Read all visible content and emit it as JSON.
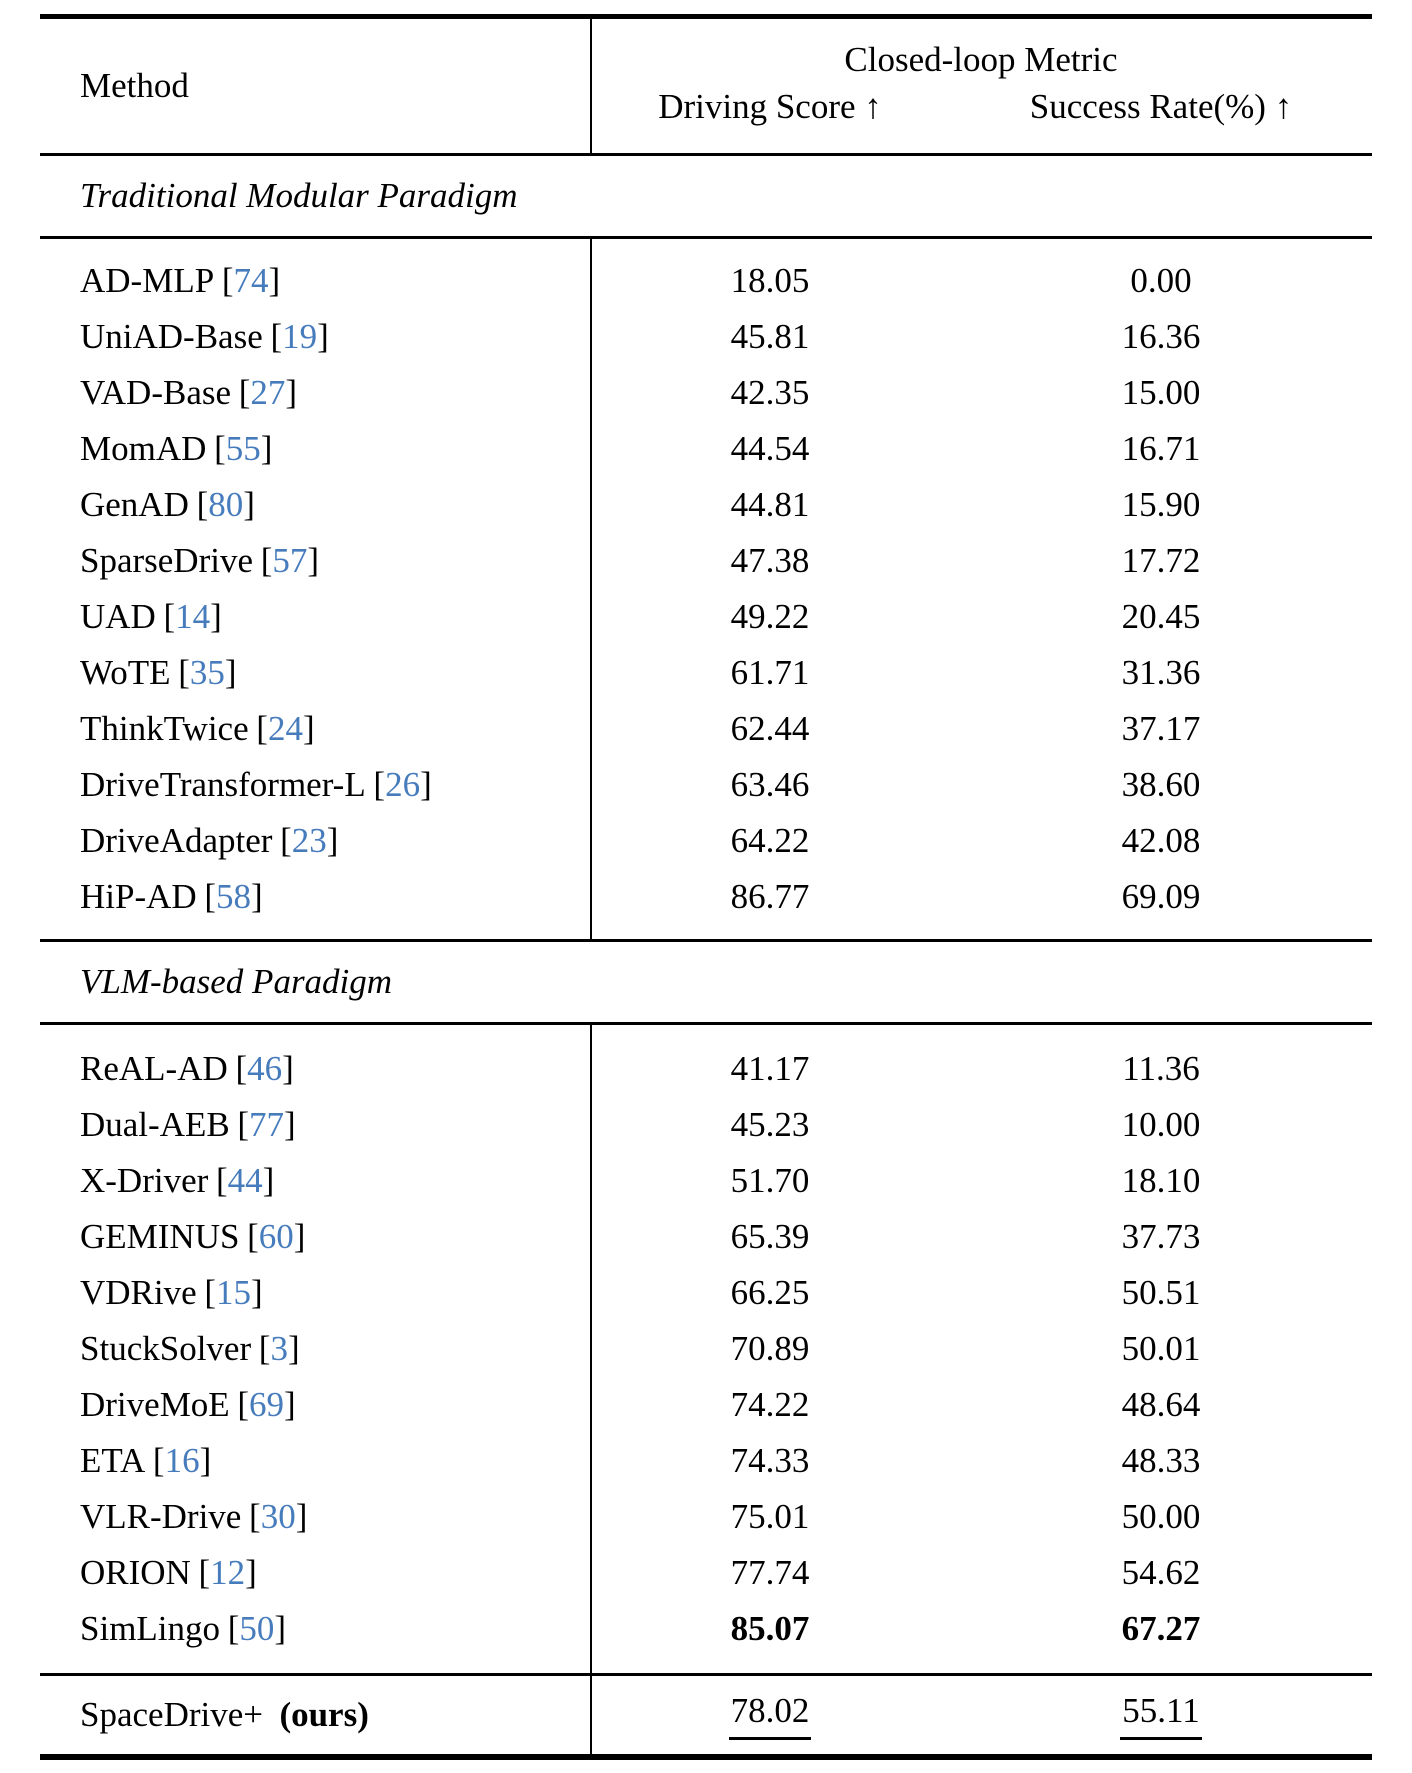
{
  "colors": {
    "citation": "#477cbc",
    "text": "#000000",
    "background": "#ffffff"
  },
  "header": {
    "method_label": "Method",
    "group_label": "Closed-loop Metric",
    "driving_score_label": "Driving Score ↑",
    "success_rate_label": "Success Rate(%) ↑"
  },
  "chart_data": {
    "type": "table",
    "title": "Closed-loop Metric comparison",
    "columns": [
      "Method",
      "Driving Score",
      "Success Rate(%)"
    ]
  },
  "sections": [
    {
      "title": "Traditional Modular Paradigm",
      "rows": [
        {
          "method": "AD-MLP",
          "ref": "74",
          "driving_score": "18.05",
          "success_rate": "0.00"
        },
        {
          "method": "UniAD-Base",
          "ref": "19",
          "driving_score": "45.81",
          "success_rate": "16.36"
        },
        {
          "method": "VAD-Base",
          "ref": "27",
          "driving_score": "42.35",
          "success_rate": "15.00"
        },
        {
          "method": "MomAD",
          "ref": "55",
          "driving_score": "44.54",
          "success_rate": "16.71"
        },
        {
          "method": "GenAD",
          "ref": "80",
          "driving_score": "44.81",
          "success_rate": "15.90"
        },
        {
          "method": "SparseDrive",
          "ref": "57",
          "driving_score": "47.38",
          "success_rate": "17.72"
        },
        {
          "method": "UAD",
          "ref": "14",
          "driving_score": "49.22",
          "success_rate": "20.45"
        },
        {
          "method": "WoTE",
          "ref": "35",
          "driving_score": "61.71",
          "success_rate": "31.36"
        },
        {
          "method": "ThinkTwice",
          "ref": "24",
          "driving_score": "62.44",
          "success_rate": "37.17"
        },
        {
          "method": "DriveTransformer-L",
          "ref": "26",
          "driving_score": "63.46",
          "success_rate": "38.60"
        },
        {
          "method": "DriveAdapter",
          "ref": "23",
          "driving_score": "64.22",
          "success_rate": "42.08"
        },
        {
          "method": "HiP-AD",
          "ref": "58",
          "driving_score": "86.77",
          "success_rate": "69.09"
        }
      ]
    },
    {
      "title": "VLM-based Paradigm",
      "rows": [
        {
          "method": "ReAL-AD",
          "ref": "46",
          "driving_score": "41.17",
          "success_rate": "11.36"
        },
        {
          "method": "Dual-AEB",
          "ref": "77",
          "driving_score": "45.23",
          "success_rate": "10.00"
        },
        {
          "method": "X-Driver",
          "ref": "44",
          "driving_score": "51.70",
          "success_rate": "18.10"
        },
        {
          "method": "GEMINUS",
          "ref": "60",
          "driving_score": "65.39",
          "success_rate": "37.73"
        },
        {
          "method": "VDRive",
          "ref": "15",
          "driving_score": "66.25",
          "success_rate": "50.51"
        },
        {
          "method": "StuckSolver",
          "ref": "3",
          "driving_score": "70.89",
          "success_rate": "50.01"
        },
        {
          "method": "DriveMoE",
          "ref": "69",
          "driving_score": "74.22",
          "success_rate": "48.64"
        },
        {
          "method": "ETA",
          "ref": "16",
          "driving_score": "74.33",
          "success_rate": "48.33"
        },
        {
          "method": "VLR-Drive",
          "ref": "30",
          "driving_score": "75.01",
          "success_rate": "50.00"
        },
        {
          "method": "ORION",
          "ref": "12",
          "driving_score": "77.74",
          "success_rate": "54.62"
        },
        {
          "method": "SimLingo",
          "ref": "50",
          "driving_score": "85.07",
          "success_rate": "67.27",
          "emphasis": "bold"
        }
      ]
    }
  ],
  "ours": {
    "method": "SpaceDrive+",
    "suffix": "(ours)",
    "driving_score": "78.02",
    "success_rate": "55.11",
    "emphasis": "underline"
  }
}
